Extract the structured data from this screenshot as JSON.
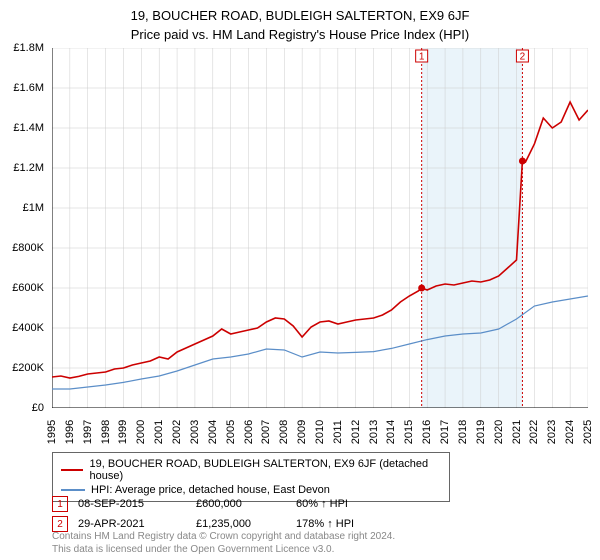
{
  "title": "19, BOUCHER ROAD, BUDLEIGH SALTERTON, EX9 6JF",
  "subtitle": "Price paid vs. HM Land Registry's House Price Index (HPI)",
  "chart": {
    "type": "line",
    "background_color": "#ffffff",
    "grid_color": "#cccccc",
    "axis_color": "#000000",
    "x": {
      "min": 1995,
      "max": 2025,
      "tick_step": 1,
      "tick_labels_rotation": -90,
      "font_size": 11
    },
    "y": {
      "min": 0,
      "max": 1800000,
      "tick_step": 200000,
      "format_prefix": "£",
      "font_size": 11,
      "tick_labels": [
        "£0",
        "£200K",
        "£400K",
        "£600K",
        "£800K",
        "£1M",
        "£1.2M",
        "£1.4M",
        "£1.6M",
        "£1.8M"
      ]
    },
    "shaded_band": {
      "x_from": 2015.69,
      "x_to": 2021.33,
      "color": "#eaf4fa"
    },
    "series": [
      {
        "name": "19, BOUCHER ROAD, BUDLEIGH SALTERTON, EX9 6JF (detached house)",
        "color": "#cc0000",
        "line_width": 1.6,
        "points": [
          [
            1995.0,
            155000
          ],
          [
            1995.5,
            160000
          ],
          [
            1996.0,
            150000
          ],
          [
            1996.5,
            158000
          ],
          [
            1997.0,
            170000
          ],
          [
            1997.5,
            175000
          ],
          [
            1998.0,
            180000
          ],
          [
            1998.5,
            195000
          ],
          [
            1999.0,
            200000
          ],
          [
            1999.5,
            215000
          ],
          [
            2000.0,
            225000
          ],
          [
            2000.5,
            235000
          ],
          [
            2001.0,
            255000
          ],
          [
            2001.5,
            245000
          ],
          [
            2002.0,
            280000
          ],
          [
            2002.5,
            300000
          ],
          [
            2003.0,
            320000
          ],
          [
            2003.5,
            340000
          ],
          [
            2004.0,
            360000
          ],
          [
            2004.5,
            395000
          ],
          [
            2005.0,
            370000
          ],
          [
            2005.5,
            380000
          ],
          [
            2006.0,
            390000
          ],
          [
            2006.5,
            400000
          ],
          [
            2007.0,
            430000
          ],
          [
            2007.5,
            450000
          ],
          [
            2008.0,
            445000
          ],
          [
            2008.5,
            410000
          ],
          [
            2009.0,
            355000
          ],
          [
            2009.5,
            405000
          ],
          [
            2010.0,
            430000
          ],
          [
            2010.5,
            435000
          ],
          [
            2011.0,
            420000
          ],
          [
            2011.5,
            430000
          ],
          [
            2012.0,
            440000
          ],
          [
            2012.5,
            445000
          ],
          [
            2013.0,
            450000
          ],
          [
            2013.5,
            465000
          ],
          [
            2014.0,
            490000
          ],
          [
            2014.5,
            530000
          ],
          [
            2015.0,
            560000
          ],
          [
            2015.5,
            585000
          ],
          [
            2015.69,
            600000
          ],
          [
            2016.0,
            590000
          ],
          [
            2016.5,
            610000
          ],
          [
            2017.0,
            620000
          ],
          [
            2017.5,
            615000
          ],
          [
            2018.0,
            625000
          ],
          [
            2018.5,
            635000
          ],
          [
            2019.0,
            630000
          ],
          [
            2019.5,
            640000
          ],
          [
            2020.0,
            660000
          ],
          [
            2020.5,
            700000
          ],
          [
            2021.0,
            740000
          ],
          [
            2021.33,
            1235000
          ],
          [
            2021.5,
            1230000
          ],
          [
            2022.0,
            1320000
          ],
          [
            2022.5,
            1450000
          ],
          [
            2023.0,
            1400000
          ],
          [
            2023.5,
            1430000
          ],
          [
            2024.0,
            1530000
          ],
          [
            2024.5,
            1440000
          ],
          [
            2025.0,
            1490000
          ]
        ]
      },
      {
        "name": "HPI: Average price, detached house, East Devon",
        "color": "#5b8ec8",
        "line_width": 1.2,
        "points": [
          [
            1995.0,
            95000
          ],
          [
            1996.0,
            95000
          ],
          [
            1997.0,
            105000
          ],
          [
            1998.0,
            115000
          ],
          [
            1999.0,
            128000
          ],
          [
            2000.0,
            145000
          ],
          [
            2001.0,
            160000
          ],
          [
            2002.0,
            185000
          ],
          [
            2003.0,
            215000
          ],
          [
            2004.0,
            245000
          ],
          [
            2005.0,
            255000
          ],
          [
            2006.0,
            270000
          ],
          [
            2007.0,
            295000
          ],
          [
            2008.0,
            290000
          ],
          [
            2009.0,
            255000
          ],
          [
            2010.0,
            280000
          ],
          [
            2011.0,
            275000
          ],
          [
            2012.0,
            278000
          ],
          [
            2013.0,
            282000
          ],
          [
            2014.0,
            298000
          ],
          [
            2015.0,
            320000
          ],
          [
            2016.0,
            342000
          ],
          [
            2017.0,
            360000
          ],
          [
            2018.0,
            370000
          ],
          [
            2019.0,
            375000
          ],
          [
            2020.0,
            395000
          ],
          [
            2021.0,
            445000
          ],
          [
            2022.0,
            510000
          ],
          [
            2023.0,
            530000
          ],
          [
            2024.0,
            545000
          ],
          [
            2025.0,
            560000
          ]
        ]
      }
    ],
    "sale_markers": [
      {
        "n": "1",
        "x": 2015.69,
        "y": 600000,
        "date": "08-SEP-2015",
        "price": "£600,000",
        "delta": "60% ↑ HPI"
      },
      {
        "n": "2",
        "x": 2021.33,
        "y": 1235000,
        "date": "29-APR-2021",
        "price": "£1,235,000",
        "delta": "178% ↑ HPI"
      }
    ],
    "sale_marker_style": {
      "border_color": "#cc0000",
      "dot_color": "#cc0000",
      "dash": "2 2"
    }
  },
  "legend": {
    "border_color": "#666666",
    "font_size": 11
  },
  "footer": {
    "line1": "Contains HM Land Registry data © Crown copyright and database right 2024.",
    "line2": "This data is licensed under the Open Government Licence v3.0.",
    "color": "#888888",
    "font_size": 10
  }
}
